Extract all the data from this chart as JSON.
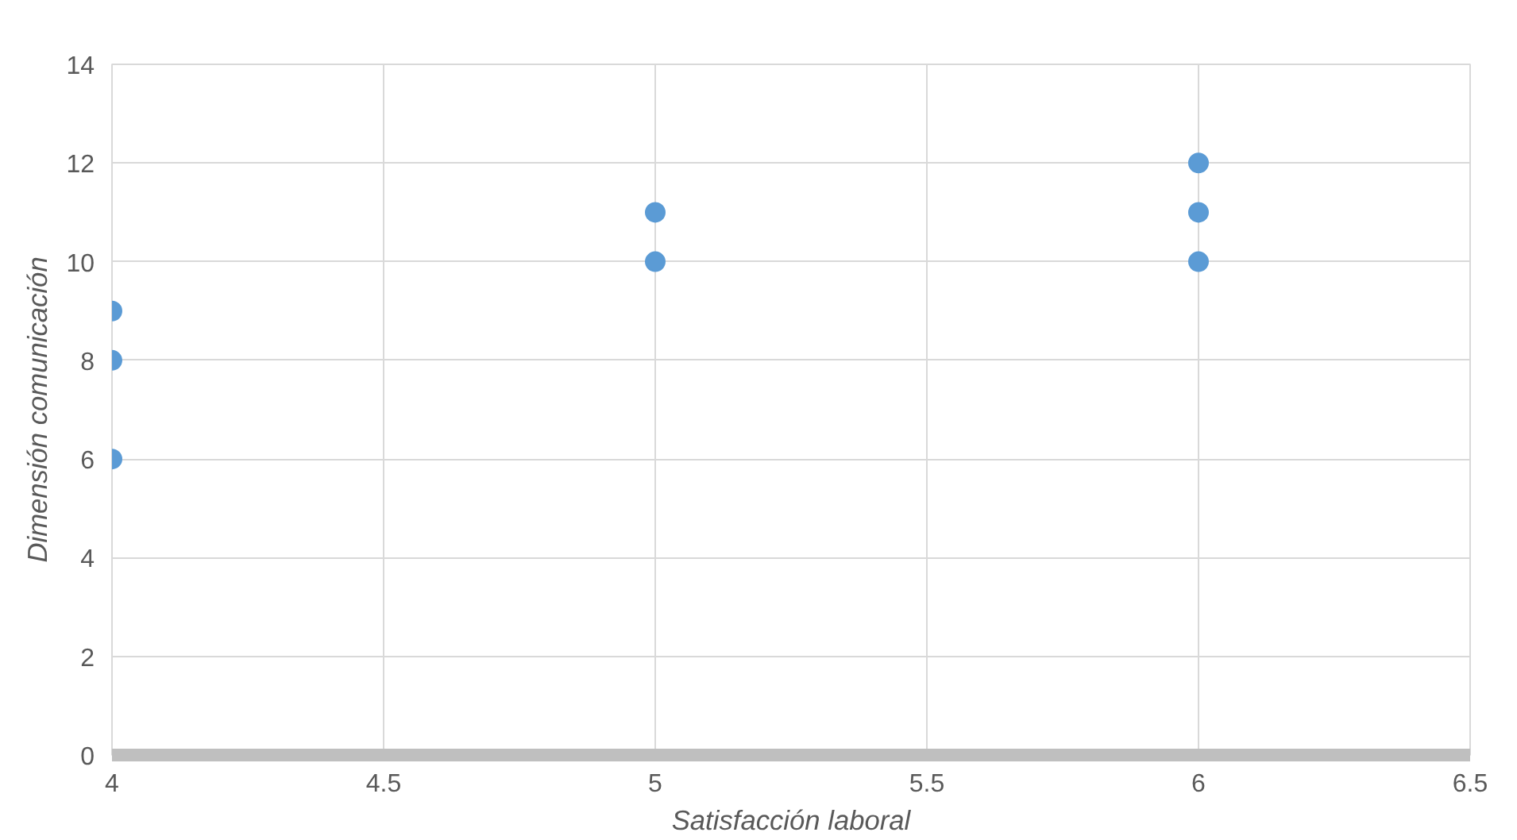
{
  "chart_data": {
    "type": "scatter",
    "xlabel": "Satisfacción laboral",
    "ylabel": "Dimensión comunicación",
    "x": [
      4,
      4,
      4,
      5,
      5,
      6,
      6,
      6
    ],
    "values": [
      9,
      8,
      6,
      11,
      10,
      12,
      11,
      10
    ],
    "color": "#5b9bd5",
    "marker": "circle",
    "xlim": [
      4,
      6.5
    ],
    "xticks": [
      4,
      4.5,
      5,
      5.5,
      6,
      6.5
    ],
    "ylim": [
      0,
      14
    ],
    "yticks": [
      0,
      2,
      4,
      6,
      8,
      10,
      12,
      14
    ],
    "grid": true
  }
}
